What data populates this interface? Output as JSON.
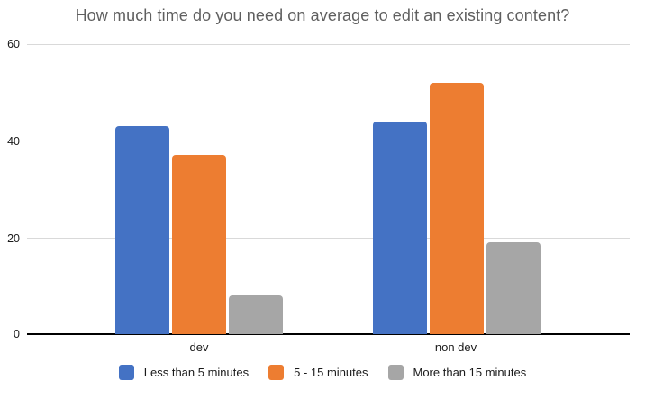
{
  "chart_data": {
    "type": "bar",
    "title": "How much time do you need on average to edit an existing content?",
    "categories": [
      "dev",
      "non dev"
    ],
    "series": [
      {
        "name": "Less than 5 minutes",
        "color": "#4472C4",
        "values": [
          43,
          44
        ]
      },
      {
        "name": "5 - 15 minutes",
        "color": "#ED7D31",
        "values": [
          37,
          52
        ]
      },
      {
        "name": "More than 15 minutes",
        "color": "#A6A6A6",
        "values": [
          8,
          19
        ]
      }
    ],
    "xlabel": "",
    "ylabel": "",
    "ylim": [
      0,
      60
    ],
    "yticks": [
      0,
      20,
      40,
      60
    ],
    "ytick_labels": [
      "0",
      "20",
      "40",
      "60"
    ],
    "grid": true,
    "legend_position": "bottom",
    "colors": {
      "title_text": "#5f5f5f",
      "gridline": "#d9d9d9",
      "baseline": "#000000",
      "axis_text": "#1a1a1a"
    }
  }
}
